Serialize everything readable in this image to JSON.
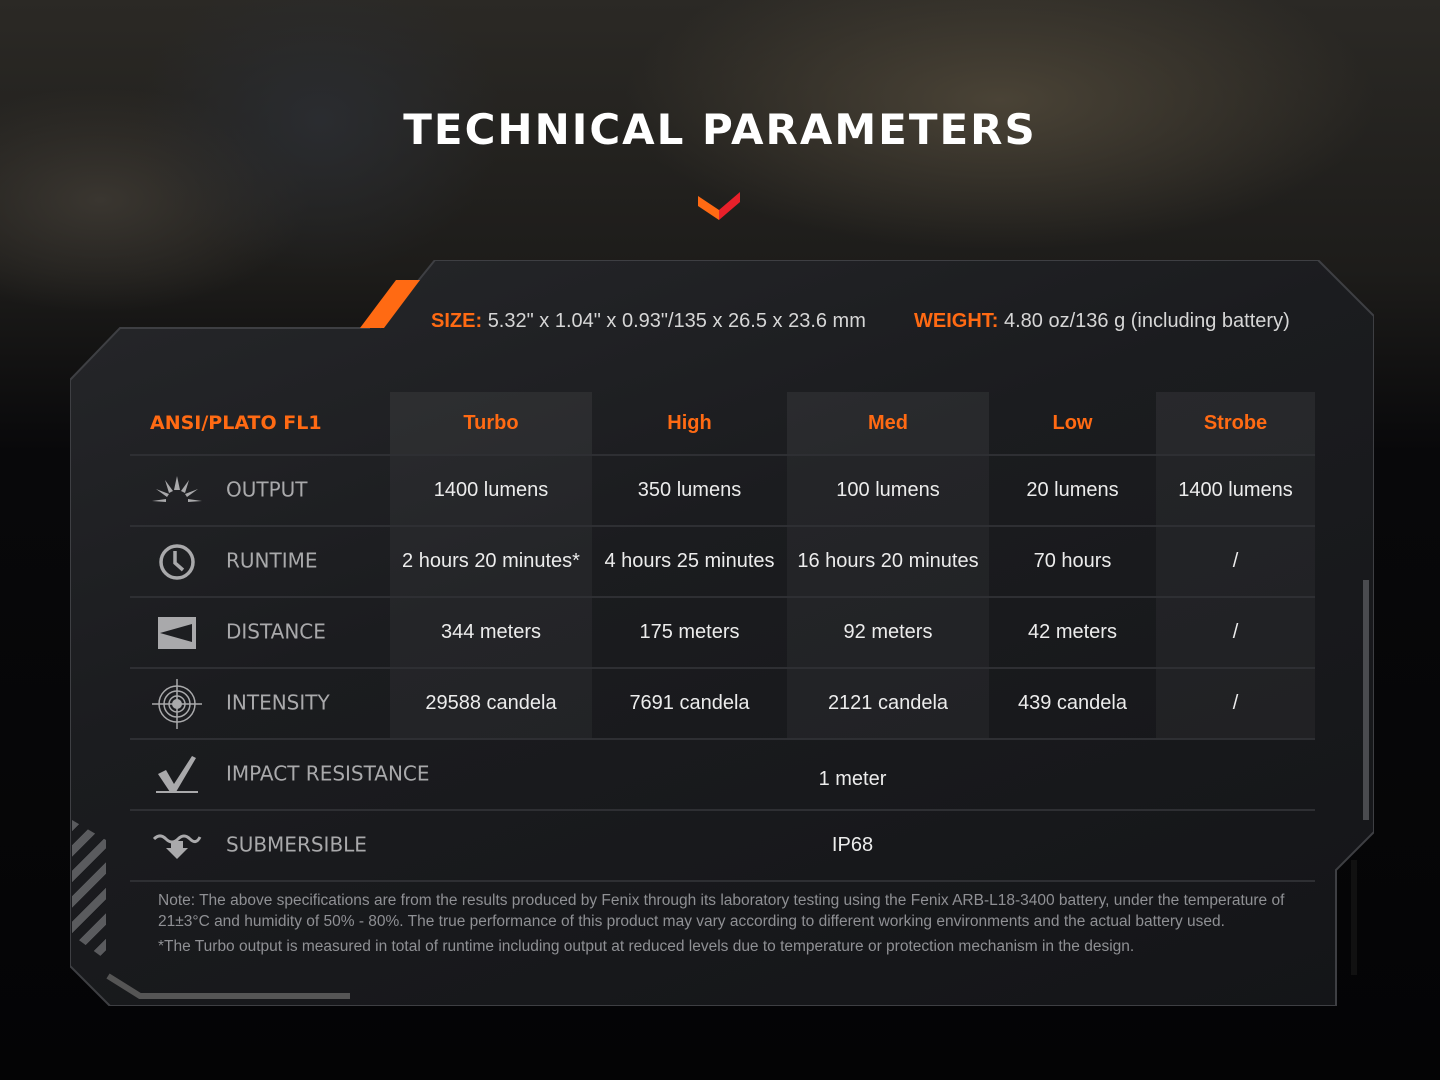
{
  "title": "TECHNICAL PARAMETERS",
  "accent_color": "#ff6a13",
  "specs": {
    "size_label": "SIZE:",
    "size_value": "5.32\" x 1.04\" x 0.93\"/135 x 26.5 x 23.6 mm",
    "weight_label": "WEIGHT:",
    "weight_value": "4.80 oz/136 g (including battery)"
  },
  "table": {
    "header": [
      "ANSI/PLATO FL1",
      "Turbo",
      "High",
      "Med",
      "Low",
      "Strobe"
    ],
    "rows": [
      {
        "icon": "sun-rays-icon",
        "label": "OUTPUT",
        "values": [
          "1400 lumens",
          "350 lumens",
          "100 lumens",
          "20 lumens",
          "1400 lumens"
        ]
      },
      {
        "icon": "clock-icon",
        "label": "RUNTIME",
        "values": [
          "2 hours 20 minutes*",
          "4 hours 25 minutes",
          "16 hours 20 minutes",
          "70 hours",
          "/"
        ]
      },
      {
        "icon": "distance-icon",
        "label": "DISTANCE",
        "values": [
          "344 meters",
          "175 meters",
          "92 meters",
          "42 meters",
          "/"
        ]
      },
      {
        "icon": "target-icon",
        "label": "INTENSITY",
        "values": [
          "29588 candela",
          "7691 candela",
          "2121 candela",
          "439 candela",
          "/"
        ]
      },
      {
        "icon": "impact-check-icon",
        "label": "IMPACT RESISTANCE",
        "value": "1 meter"
      },
      {
        "icon": "submersible-icon",
        "label": "SUBMERSIBLE",
        "value": "IP68"
      }
    ]
  },
  "notes": [
    "Note: The above specifications are from the results produced by Fenix through its laboratory testing using the Fenix ARB-L18-3400 battery, under the temperature of 21±3°C and humidity of 50% - 80%. The true performance of this product may vary according to different working environments and the actual battery used.",
    "*The Turbo output is measured in total of runtime including output at reduced levels due to temperature or protection mechanism in the design."
  ]
}
